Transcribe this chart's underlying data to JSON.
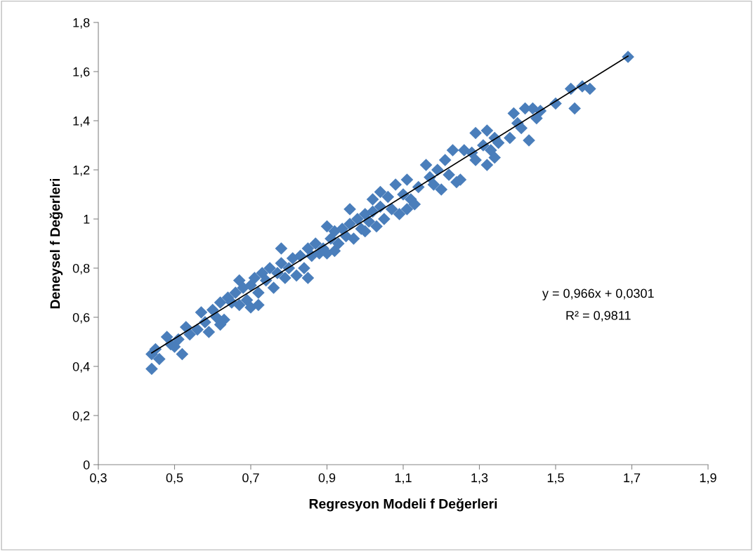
{
  "chart_data": {
    "type": "scatter",
    "xlabel": "Regresyon Modeli f Değerleri",
    "ylabel": "Deneysel f Değerleri",
    "xlim": [
      0.3,
      1.9
    ],
    "xticks": [
      {
        "value": 0.3,
        "label": "0,3"
      },
      {
        "value": 0.5,
        "label": "0,5"
      },
      {
        "value": 0.7,
        "label": "0,7"
      },
      {
        "value": 0.9,
        "label": "0,9"
      },
      {
        "value": 1.1,
        "label": "1,1"
      },
      {
        "value": 1.3,
        "label": "1,3"
      },
      {
        "value": 1.5,
        "label": "1,5"
      },
      {
        "value": 1.7,
        "label": "1,7"
      },
      {
        "value": 1.9,
        "label": "1,9"
      }
    ],
    "ylim": [
      0,
      1.8
    ],
    "yticks": [
      0,
      {
        "value": 0.2,
        "label": "0,2"
      },
      {
        "value": 0.4,
        "label": "0,4"
      },
      {
        "value": 0.6,
        "label": "0,6"
      },
      {
        "value": 0.8,
        "label": "0,8"
      },
      1,
      {
        "value": 1.2,
        "label": "1,2"
      },
      {
        "value": 1.4,
        "label": "1,4"
      },
      {
        "value": 1.6,
        "label": "1,6"
      },
      {
        "value": 1.8,
        "label": "1,8"
      }
    ],
    "grid": false,
    "marker": "diamond",
    "annotations": [
      "y = 0,966x + 0,0301",
      "R² = 0,9811"
    ],
    "series": [
      {
        "color": "#4a7ebb",
        "x": [
          0.44,
          0.44,
          0.45,
          0.46,
          0.48,
          0.49,
          0.5,
          0.51,
          0.52,
          0.53,
          0.54,
          0.56,
          0.57,
          0.58,
          0.59,
          0.6,
          0.61,
          0.62,
          0.62,
          0.63,
          0.64,
          0.65,
          0.66,
          0.67,
          0.67,
          0.68,
          0.69,
          0.7,
          0.7,
          0.71,
          0.72,
          0.72,
          0.73,
          0.74,
          0.75,
          0.76,
          0.77,
          0.78,
          0.78,
          0.79,
          0.8,
          0.81,
          0.82,
          0.83,
          0.84,
          0.85,
          0.85,
          0.86,
          0.87,
          0.88,
          0.89,
          0.9,
          0.9,
          0.91,
          0.92,
          0.92,
          0.93,
          0.94,
          0.95,
          0.96,
          0.96,
          0.97,
          0.98,
          0.99,
          1.0,
          1.0,
          1.01,
          1.02,
          1.02,
          1.03,
          1.04,
          1.04,
          1.05,
          1.06,
          1.07,
          1.08,
          1.09,
          1.1,
          1.11,
          1.11,
          1.12,
          1.13,
          1.14,
          1.16,
          1.17,
          1.18,
          1.19,
          1.2,
          1.21,
          1.22,
          1.23,
          1.24,
          1.25,
          1.26,
          1.28,
          1.29,
          1.29,
          1.31,
          1.32,
          1.32,
          1.33,
          1.34,
          1.34,
          1.35,
          1.38,
          1.39,
          1.4,
          1.41,
          1.42,
          1.43,
          1.44,
          1.45,
          1.46,
          1.5,
          1.54,
          1.55,
          1.57,
          1.59,
          1.69
        ],
        "values": [
          0.45,
          0.39,
          0.47,
          0.43,
          0.52,
          0.49,
          0.48,
          0.51,
          0.45,
          0.56,
          0.53,
          0.55,
          0.62,
          0.58,
          0.54,
          0.63,
          0.6,
          0.66,
          0.57,
          0.59,
          0.68,
          0.66,
          0.7,
          0.75,
          0.65,
          0.72,
          0.67,
          0.64,
          0.73,
          0.76,
          0.7,
          0.65,
          0.78,
          0.75,
          0.8,
          0.72,
          0.78,
          0.88,
          0.82,
          0.76,
          0.8,
          0.84,
          0.77,
          0.85,
          0.8,
          0.76,
          0.88,
          0.85,
          0.9,
          0.86,
          0.88,
          0.97,
          0.86,
          0.92,
          0.95,
          0.87,
          0.9,
          0.96,
          0.93,
          1.04,
          0.98,
          0.92,
          1.0,
          0.96,
          1.02,
          0.95,
          0.99,
          1.08,
          1.03,
          0.97,
          1.11,
          1.05,
          1.0,
          1.09,
          1.04,
          1.14,
          1.02,
          1.1,
          1.16,
          1.04,
          1.08,
          1.06,
          1.13,
          1.22,
          1.17,
          1.14,
          1.2,
          1.12,
          1.24,
          1.18,
          1.28,
          1.15,
          1.16,
          1.28,
          1.27,
          1.35,
          1.24,
          1.3,
          1.36,
          1.22,
          1.28,
          1.33,
          1.25,
          1.31,
          1.33,
          1.43,
          1.39,
          1.37,
          1.45,
          1.32,
          1.45,
          1.41,
          1.44,
          1.47,
          1.53,
          1.45,
          1.54,
          1.53,
          1.66
        ]
      },
      {
        "type": "line",
        "color": "#000000",
        "marker": "none",
        "x": [
          0.44,
          1.69
        ],
        "values": [
          0.455,
          1.663
        ]
      }
    ]
  }
}
